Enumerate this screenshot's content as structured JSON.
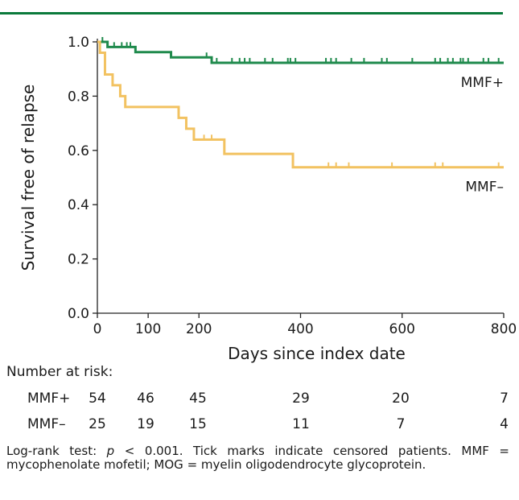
{
  "colors": {
    "accent_bar": "#0a7a3b",
    "mmf_plus": "#1f8a4c",
    "mmf_minus": "#f2c261",
    "axis": "#222222"
  },
  "chart_data": {
    "type": "line",
    "subtype": "kaplan-meier step",
    "xlabel": "Days since index date",
    "ylabel": "Survival free of relapse",
    "xlim": [
      0,
      800
    ],
    "ylim": [
      0.0,
      1.0
    ],
    "xticks": [
      "0",
      "100",
      "200",
      "400",
      "600",
      "800"
    ],
    "yticks": [
      "0.0",
      "0.2",
      "0.4",
      "0.6",
      "0.8",
      "1.0"
    ],
    "grid": false,
    "series": [
      {
        "name": "MMF+",
        "color": "#1f8a4c",
        "steps": [
          [
            0,
            1.0
          ],
          [
            20,
            0.981
          ],
          [
            75,
            0.962
          ],
          [
            145,
            0.943
          ],
          [
            225,
            0.923
          ],
          [
            800,
            0.923
          ]
        ],
        "censored": [
          [
            10,
            1.0
          ],
          [
            33,
            0.981
          ],
          [
            48,
            0.981
          ],
          [
            58,
            0.981
          ],
          [
            65,
            0.981
          ],
          [
            215,
            0.943
          ],
          [
            235,
            0.923
          ],
          [
            265,
            0.923
          ],
          [
            280,
            0.923
          ],
          [
            290,
            0.923
          ],
          [
            300,
            0.923
          ],
          [
            330,
            0.923
          ],
          [
            345,
            0.923
          ],
          [
            375,
            0.923
          ],
          [
            380,
            0.923
          ],
          [
            390,
            0.923
          ],
          [
            450,
            0.923
          ],
          [
            460,
            0.923
          ],
          [
            470,
            0.923
          ],
          [
            500,
            0.923
          ],
          [
            525,
            0.923
          ],
          [
            560,
            0.923
          ],
          [
            570,
            0.923
          ],
          [
            620,
            0.923
          ],
          [
            665,
            0.923
          ],
          [
            675,
            0.923
          ],
          [
            690,
            0.923
          ],
          [
            700,
            0.923
          ],
          [
            715,
            0.923
          ],
          [
            720,
            0.923
          ],
          [
            730,
            0.923
          ],
          [
            760,
            0.923
          ],
          [
            770,
            0.923
          ],
          [
            790,
            0.923
          ]
        ]
      },
      {
        "name": "MMF–",
        "color": "#f2c261",
        "steps": [
          [
            0,
            1.0
          ],
          [
            5,
            0.96
          ],
          [
            15,
            0.88
          ],
          [
            30,
            0.84
          ],
          [
            45,
            0.8
          ],
          [
            55,
            0.76
          ],
          [
            160,
            0.72
          ],
          [
            175,
            0.68
          ],
          [
            190,
            0.64
          ],
          [
            250,
            0.587
          ],
          [
            385,
            0.538
          ],
          [
            800,
            0.538
          ]
        ],
        "censored": [
          [
            210,
            0.64
          ],
          [
            225,
            0.64
          ],
          [
            455,
            0.538
          ],
          [
            470,
            0.538
          ],
          [
            495,
            0.538
          ],
          [
            580,
            0.538
          ],
          [
            665,
            0.538
          ],
          [
            680,
            0.538
          ],
          [
            790,
            0.538
          ]
        ]
      }
    ]
  },
  "risk_table": {
    "title": "Number at risk:",
    "times": [
      0,
      100,
      200,
      400,
      600,
      800
    ],
    "rows": [
      {
        "label": "MMF+",
        "values": [
          "54",
          "46",
          "45",
          "29",
          "20",
          "7"
        ]
      },
      {
        "label": "MMF–",
        "values": [
          "25",
          "19",
          "15",
          "11",
          "7",
          "4"
        ]
      }
    ]
  },
  "caption": {
    "prefix": "Log-rank test: ",
    "p_symbol": "p",
    "text": " < 0.001. Tick marks indicate censored patients. MMF = mycophenolate mofetil; MOG = myelin oligodendrocyte glycoprotein."
  }
}
